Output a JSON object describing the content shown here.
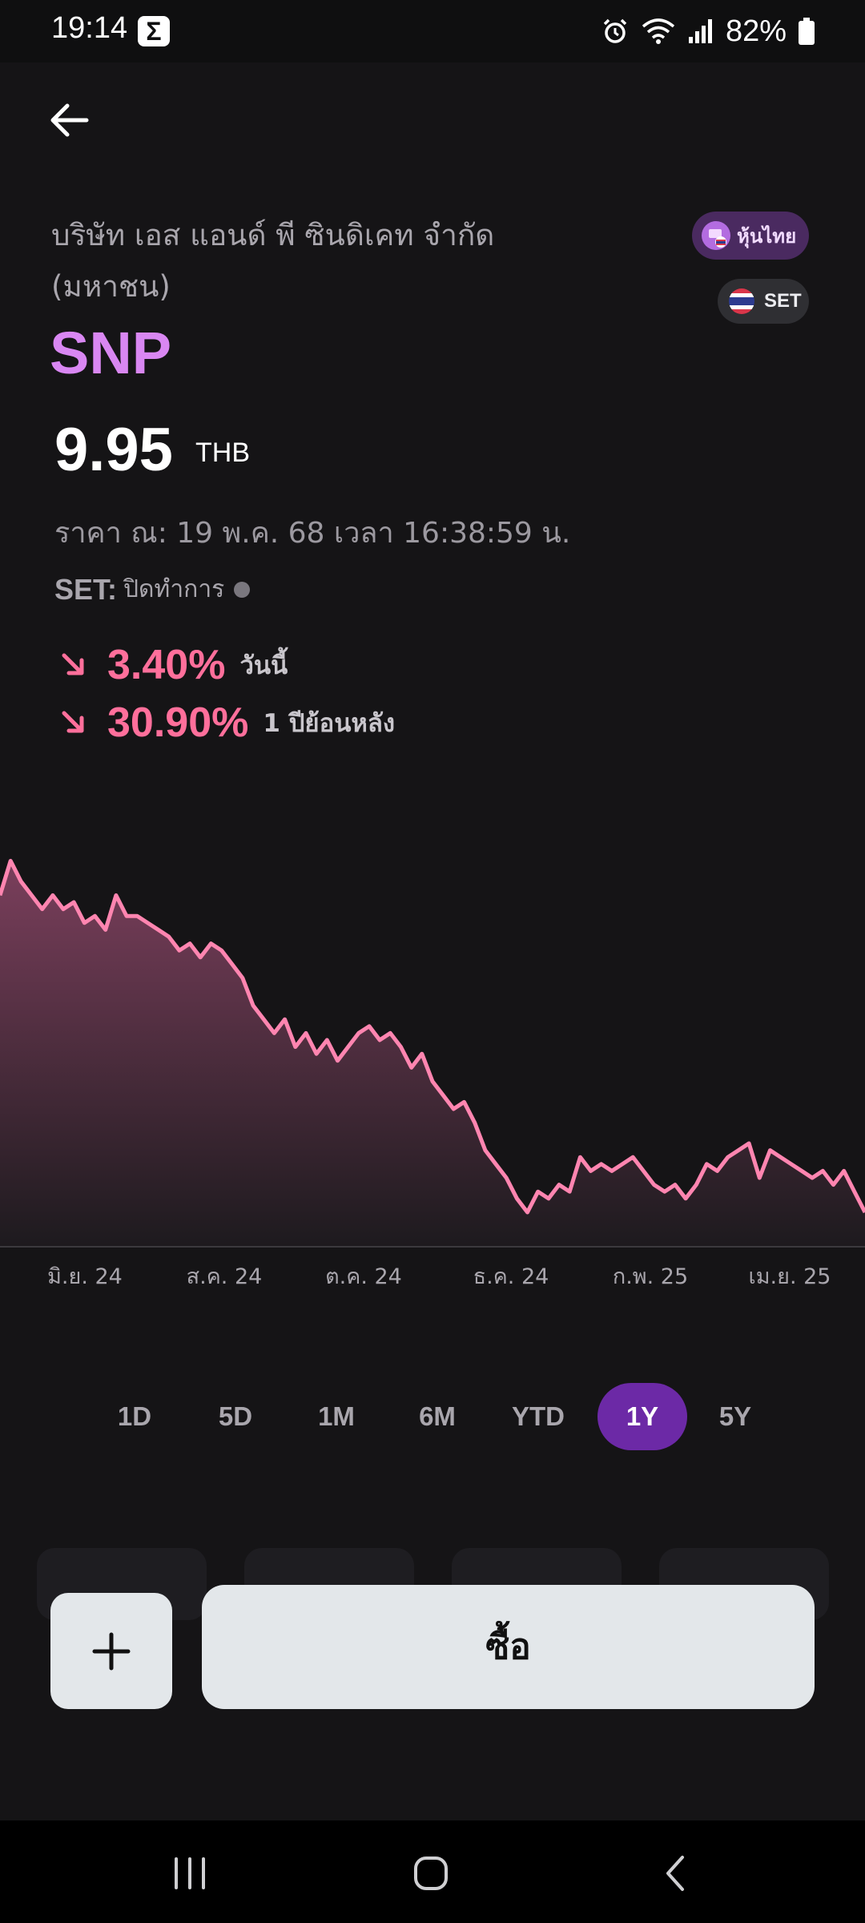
{
  "status_bar": {
    "time": "19:14",
    "notif_icon": "Σ",
    "battery": "82%"
  },
  "header": {
    "back_icon": "arrow-left-icon"
  },
  "stock": {
    "company_name": "บริษัท เอส แอนด์ พี ซินดิเคท จำกัด (มหาชน)",
    "ticker": "SNP",
    "price": "9.95",
    "currency": "THB",
    "as_of": "ราคา ณ: 19 พ.ค. 68 เวลา 16:38:59 น.",
    "market_label": "SET:",
    "market_status": "ปิดทำการ",
    "tags": {
      "market_type": "หุ้นไทย",
      "exchange": "SET"
    },
    "changes": [
      {
        "direction": "down",
        "value": "3.40%",
        "period": "วันนี้"
      },
      {
        "direction": "down",
        "value": "30.90%",
        "period": "1 ปีย้อนหลัง"
      }
    ]
  },
  "chart_data": {
    "type": "area",
    "title": "",
    "xlabel": "",
    "ylabel": "",
    "x_tick_labels": [
      "มิ.ย. 24",
      "ส.ค. 24",
      "ต.ค. 24",
      "ธ.ค. 24",
      "ก.พ. 25",
      "เม.ย. 25"
    ],
    "ylim": [
      9.5,
      15.5
    ],
    "grid": false,
    "colors": {
      "line": "#ff85b0",
      "fill_top": "#7b3f5c",
      "volume": "#4a474d"
    },
    "series": [
      {
        "values": [
          14.6,
          15.1,
          14.8,
          14.6,
          14.4,
          14.6,
          14.4,
          14.5,
          14.2,
          14.3,
          14.1,
          14.6,
          14.3,
          14.3,
          14.2,
          14.1,
          14.0,
          13.8,
          13.9,
          13.7,
          13.9,
          13.8,
          13.6,
          13.4,
          13.0,
          12.8,
          12.6,
          12.8,
          12.4,
          12.6,
          12.3,
          12.5,
          12.2,
          12.4,
          12.6,
          12.7,
          12.5,
          12.6,
          12.4,
          12.1,
          12.3,
          11.9,
          11.7,
          11.5,
          11.6,
          11.3,
          10.9,
          10.7,
          10.5,
          10.2,
          10.0,
          10.3,
          10.2,
          10.4,
          10.3,
          10.8,
          10.6,
          10.7,
          10.6,
          10.7,
          10.8,
          10.6,
          10.4,
          10.3,
          10.4,
          10.2,
          10.4,
          10.7,
          10.6,
          10.8,
          10.9,
          11.0,
          10.5,
          10.9,
          10.8,
          10.7,
          10.6,
          10.5,
          10.6,
          10.4,
          10.6,
          10.3,
          10.0
        ]
      }
    ],
    "volume_note": "volume bars along baseline, spike near ต.ค. 24"
  },
  "ranges": {
    "items": [
      "1D",
      "5D",
      "1M",
      "6M",
      "YTD",
      "1Y",
      "5Y"
    ],
    "active": "1Y"
  },
  "actions": {
    "add_icon": "plus-icon",
    "buy_label": "ซื้อ"
  },
  "nav_bar": {
    "icons": [
      "recent-apps-icon",
      "home-icon",
      "back-nav-icon"
    ]
  }
}
